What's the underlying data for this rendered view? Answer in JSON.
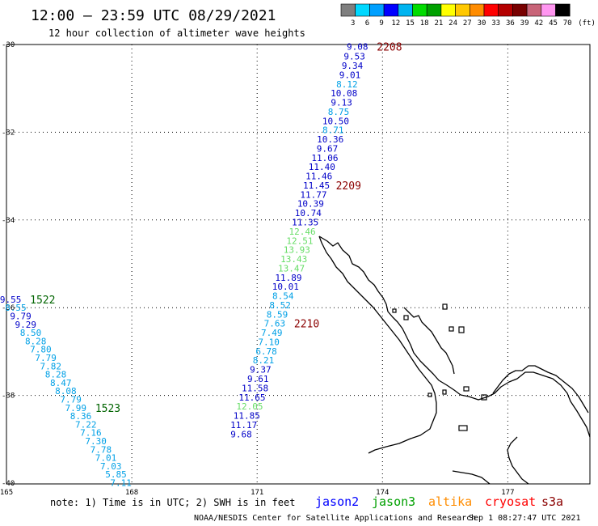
{
  "header": {
    "title": "12:00 – 23:59 UTC 08/29/2021",
    "subtitle": "12 hour collection of altimeter wave heights"
  },
  "legend": {
    "labels": [
      "3",
      "6",
      "9",
      "12",
      "15",
      "18",
      "21",
      "24",
      "27",
      "30",
      "33",
      "36",
      "39",
      "42",
      "45",
      "70"
    ],
    "unit": "(ft)",
    "colors": [
      "#7f7f7f",
      "#00d8ff",
      "#00a0ff",
      "#0000ff",
      "#00b4f0",
      "#00dc00",
      "#00a000",
      "#ffff00",
      "#ffc800",
      "#ff8c00",
      "#ff0000",
      "#b40000",
      "#780000",
      "#c86478",
      "#ff96f0",
      "#000000"
    ]
  },
  "axes": {
    "lat_labels": [
      "-30",
      "-32",
      "-34",
      "-36",
      "-38",
      "-40"
    ],
    "lon_labels": [
      "165",
      "168",
      "171",
      "174",
      "177"
    ]
  },
  "tracks": [
    {
      "label": "2208",
      "label_color": "#8b0000",
      "points": [
        {
          "lon": 173.4,
          "lat": -30.05,
          "swh": "9.08",
          "color": "#0000c8"
        },
        {
          "lon": 173.33,
          "lat": -30.27,
          "swh": "9.53",
          "color": "#0000c8"
        },
        {
          "lon": 173.28,
          "lat": -30.48,
          "swh": "9.34",
          "color": "#0000c8"
        },
        {
          "lon": 173.22,
          "lat": -30.69,
          "swh": "9.01",
          "color": "#0000c8"
        },
        {
          "lon": 173.15,
          "lat": -30.9,
          "swh": "8.12",
          "color": "#00a0e6"
        },
        {
          "lon": 173.08,
          "lat": -31.11,
          "swh": "10.08",
          "color": "#0000c8"
        },
        {
          "lon": 173.02,
          "lat": -31.32,
          "swh": "9.13",
          "color": "#0000c8"
        },
        {
          "lon": 172.95,
          "lat": -31.53,
          "swh": "8.75",
          "color": "#00a0e6"
        },
        {
          "lon": 172.88,
          "lat": -31.74,
          "swh": "10.50",
          "color": "#0000c8"
        },
        {
          "lon": 172.82,
          "lat": -31.95,
          "swh": "8.71",
          "color": "#00a0e6"
        },
        {
          "lon": 172.75,
          "lat": -32.16,
          "swh": "10.36",
          "color": "#0000c8"
        },
        {
          "lon": 172.68,
          "lat": -32.37,
          "swh": "9.67",
          "color": "#0000c8"
        },
        {
          "lon": 172.62,
          "lat": -32.58,
          "swh": "11.06",
          "color": "#0000c8"
        },
        {
          "lon": 172.55,
          "lat": -32.79,
          "swh": "11.40",
          "color": "#0000c8"
        },
        {
          "lon": 172.48,
          "lat": -33.0,
          "swh": "11.46",
          "color": "#0000c8"
        }
      ]
    },
    {
      "label": "2209",
      "label_color": "#8b0000",
      "points": [
        {
          "lon": 172.42,
          "lat": -33.21,
          "swh": "11.45",
          "color": "#0000c8"
        },
        {
          "lon": 172.35,
          "lat": -33.42,
          "swh": "11.77",
          "color": "#0000c8"
        },
        {
          "lon": 172.28,
          "lat": -33.63,
          "swh": "10.39",
          "color": "#0000c8"
        },
        {
          "lon": 172.22,
          "lat": -33.84,
          "swh": "10.74",
          "color": "#0000c8"
        },
        {
          "lon": 172.15,
          "lat": -34.05,
          "swh": "11.35",
          "color": "#0000c8"
        },
        {
          "lon": 172.08,
          "lat": -34.26,
          "swh": "12.46",
          "color": "#66dd66"
        },
        {
          "lon": 172.02,
          "lat": -34.47,
          "swh": "12.51",
          "color": "#66dd66"
        },
        {
          "lon": 171.95,
          "lat": -34.68,
          "swh": "13.93",
          "color": "#66dd66"
        },
        {
          "lon": 171.88,
          "lat": -34.89,
          "swh": "13.43",
          "color": "#66dd66"
        },
        {
          "lon": 171.82,
          "lat": -35.1,
          "swh": "13.47",
          "color": "#66dd66"
        },
        {
          "lon": 171.75,
          "lat": -35.31,
          "swh": "11.89",
          "color": "#0000c8"
        },
        {
          "lon": 171.68,
          "lat": -35.52,
          "swh": "10.01",
          "color": "#0000c8"
        },
        {
          "lon": 171.62,
          "lat": -35.73,
          "swh": "8.54",
          "color": "#00a0e6"
        },
        {
          "lon": 171.55,
          "lat": -35.94,
          "swh": "8.52",
          "color": "#00a0e6"
        },
        {
          "lon": 171.48,
          "lat": -36.15,
          "swh": "8.59",
          "color": "#00a0e6"
        }
      ]
    },
    {
      "label": "2210",
      "label_color": "#8b0000",
      "points": [
        {
          "lon": 171.42,
          "lat": -36.36,
          "swh": "7.63",
          "color": "#00a0e6"
        },
        {
          "lon": 171.35,
          "lat": -36.57,
          "swh": "7.49",
          "color": "#00a0e6"
        },
        {
          "lon": 171.28,
          "lat": -36.78,
          "swh": "7.10",
          "color": "#00a0e6"
        },
        {
          "lon": 171.22,
          "lat": -36.99,
          "swh": "6.78",
          "color": "#00a0e6"
        },
        {
          "lon": 171.15,
          "lat": -37.2,
          "swh": "8.21",
          "color": "#00a0e6"
        },
        {
          "lon": 171.08,
          "lat": -37.41,
          "swh": "9.37",
          "color": "#0000c8"
        },
        {
          "lon": 171.02,
          "lat": -37.62,
          "swh": "9.61",
          "color": "#0000c8"
        },
        {
          "lon": 170.95,
          "lat": -37.83,
          "swh": "11.58",
          "color": "#0000c8"
        },
        {
          "lon": 170.88,
          "lat": -38.04,
          "swh": "11.65",
          "color": "#0000c8"
        },
        {
          "lon": 170.82,
          "lat": -38.25,
          "swh": "12.05",
          "color": "#66dd66"
        },
        {
          "lon": 170.75,
          "lat": -38.46,
          "swh": "11.85",
          "color": "#0000c8"
        },
        {
          "lon": 170.68,
          "lat": -38.67,
          "swh": "11.17",
          "color": "#0000c8"
        },
        {
          "lon": 170.62,
          "lat": -38.88,
          "swh": "9.68",
          "color": "#0000c8"
        }
      ]
    },
    {
      "label": "1522",
      "label_color": "#006400",
      "points": [
        {
          "lon": 165.1,
          "lat": -35.81,
          "swh": "9.55",
          "color": "#0000c8"
        },
        {
          "lon": 165.22,
          "lat": -36.0,
          "swh": "8.55",
          "color": "#00a0e6"
        },
        {
          "lon": 165.34,
          "lat": -36.19,
          "swh": "9.79",
          "color": "#0000c8"
        },
        {
          "lon": 165.46,
          "lat": -36.38,
          "swh": "9.29",
          "color": "#0000c8"
        },
        {
          "lon": 165.58,
          "lat": -36.57,
          "swh": "8.50",
          "color": "#00a0e6"
        },
        {
          "lon": 165.7,
          "lat": -36.76,
          "swh": "8.28",
          "color": "#00a0e6"
        },
        {
          "lon": 165.82,
          "lat": -36.95,
          "swh": "7.80",
          "color": "#00a0e6"
        },
        {
          "lon": 165.94,
          "lat": -37.14,
          "swh": "7.79",
          "color": "#00a0e6"
        },
        {
          "lon": 166.06,
          "lat": -37.33,
          "swh": "7.82",
          "color": "#00a0e6"
        },
        {
          "lon": 166.18,
          "lat": -37.52,
          "swh": "8.28",
          "color": "#00a0e6"
        },
        {
          "lon": 166.3,
          "lat": -37.71,
          "swh": "8.47",
          "color": "#00a0e6"
        },
        {
          "lon": 166.42,
          "lat": -37.9,
          "swh": "8.08",
          "color": "#00a0e6"
        },
        {
          "lon": 166.54,
          "lat": -38.09,
          "swh": "7.79",
          "color": "#00a0e6"
        }
      ]
    },
    {
      "label": "1523",
      "label_color": "#006400",
      "points": [
        {
          "lon": 166.66,
          "lat": -38.28,
          "swh": "7.99",
          "color": "#00a0e6"
        },
        {
          "lon": 166.78,
          "lat": -38.47,
          "swh": "8.36",
          "color": "#00a0e6"
        },
        {
          "lon": 166.9,
          "lat": -38.66,
          "swh": "7.22",
          "color": "#00a0e6"
        },
        {
          "lon": 167.02,
          "lat": -38.85,
          "swh": "7.16",
          "color": "#00a0e6"
        },
        {
          "lon": 167.14,
          "lat": -39.04,
          "swh": "7.30",
          "color": "#00a0e6"
        },
        {
          "lon": 167.26,
          "lat": -39.23,
          "swh": "7.78",
          "color": "#00a0e6"
        },
        {
          "lon": 167.38,
          "lat": -39.42,
          "swh": "7.01",
          "color": "#00a0e6"
        },
        {
          "lon": 167.5,
          "lat": -39.61,
          "swh": "7.03",
          "color": "#00a0e6"
        },
        {
          "lon": 167.62,
          "lat": -39.8,
          "swh": "5.85",
          "color": "#00a0e6"
        },
        {
          "lon": 167.74,
          "lat": -39.99,
          "swh": "7.11",
          "color": "#00a0e6"
        }
      ]
    }
  ],
  "note": "note: 1) Time is in UTC; 2) SWH is in feet",
  "satellites": [
    {
      "name": "jason2",
      "color": "#0000ff"
    },
    {
      "name": "jason3",
      "color": "#00a000"
    },
    {
      "name": "altika",
      "color": "#ff8c00"
    },
    {
      "name": "cryosat",
      "color": "#ff0000"
    },
    {
      "name": "s3a",
      "color": "#8b0000"
    }
  ],
  "credit": {
    "org": "NOAA/NESDIS Center for Satellite Applications and Research",
    "timestamp": "Sep  1 08:27:47 UTC 2021"
  }
}
